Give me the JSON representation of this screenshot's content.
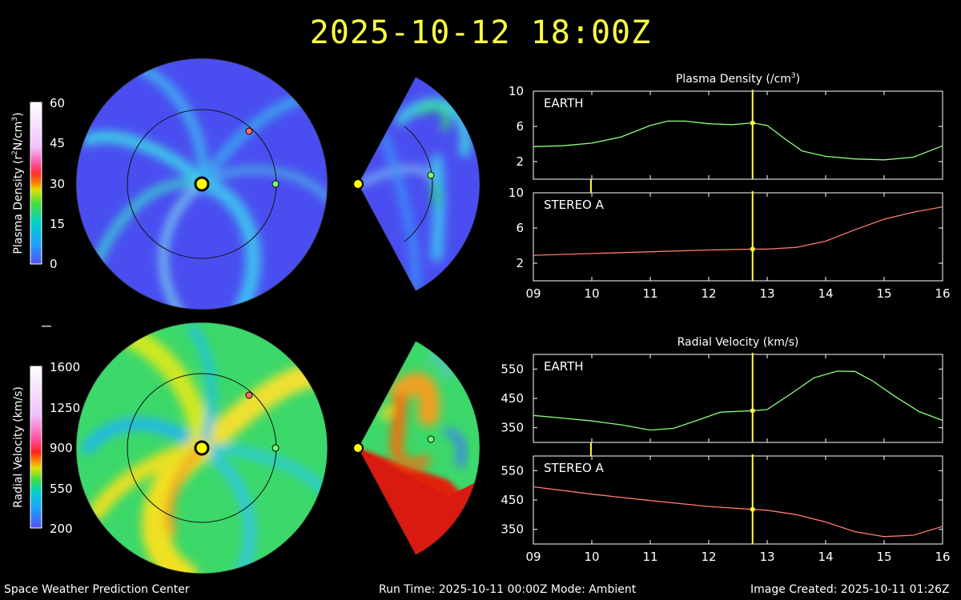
{
  "title": "2025-10-12 18:00Z",
  "colors": {
    "title": "#ffff44",
    "earth": "#8cff7c",
    "stereo_a": "#ff7b6f",
    "now_line": "#ffff44"
  },
  "density_colorbar": {
    "label_parts": [
      "Plasma Density (r",
      "2",
      "N/cm",
      "3",
      ")"
    ],
    "ticks": [
      "0",
      "15",
      "30",
      "45",
      "60"
    ]
  },
  "velocity_colorbar": {
    "label": "Radial Velocity (km/s)",
    "ticks": [
      "200",
      "550",
      "900",
      "1250",
      "1600"
    ]
  },
  "footer": {
    "left": "Space Weather Prediction Center",
    "mid": "Run Time: 2025-10-11 00:00Z  Mode: Ambient",
    "right": "Image Created: 2025-10-11 01:26Z"
  },
  "chart_data": [
    {
      "type": "line",
      "title_parts": [
        "Plasma Density (/cm",
        "3",
        ")"
      ],
      "panel": "EARTH",
      "x": [
        9,
        9.5,
        10,
        10.5,
        11,
        11.3,
        11.6,
        12,
        12.4,
        12.75,
        13,
        13.3,
        13.6,
        14,
        14.5,
        15,
        15.5,
        16
      ],
      "y": [
        3.7,
        3.8,
        4.1,
        4.8,
        6.1,
        6.6,
        6.6,
        6.3,
        6.2,
        6.4,
        6.1,
        4.6,
        3.2,
        2.6,
        2.3,
        2.2,
        2.5,
        3.8
      ],
      "xlim": [
        9,
        16
      ],
      "ylim": [
        0,
        10
      ],
      "yticks": [
        2,
        6,
        10
      ],
      "xticks": [
        "09",
        "10",
        "11",
        "12",
        "13",
        "14",
        "15",
        "16"
      ],
      "marker_x": 12.75
    },
    {
      "type": "line",
      "panel": "STEREO A",
      "x": [
        9,
        10,
        11,
        12,
        12.75,
        13,
        13.5,
        14,
        14.5,
        15,
        15.5,
        16
      ],
      "y": [
        2.9,
        3.1,
        3.3,
        3.5,
        3.6,
        3.6,
        3.8,
        4.5,
        5.8,
        7.0,
        7.8,
        8.4
      ],
      "xlim": [
        9,
        16
      ],
      "ylim": [
        0,
        10
      ],
      "yticks": [
        2,
        6,
        10
      ],
      "xticks": [
        "09",
        "10",
        "11",
        "12",
        "13",
        "14",
        "15",
        "16"
      ],
      "marker_x": 12.75
    },
    {
      "type": "line",
      "title": "Radial Velocity (km/s)",
      "panel": "EARTH",
      "x": [
        9,
        9.5,
        10,
        10.5,
        11,
        11.4,
        11.8,
        12.2,
        12.75,
        13,
        13.4,
        13.8,
        14.2,
        14.5,
        14.8,
        15.2,
        15.6,
        16
      ],
      "y": [
        392,
        383,
        373,
        360,
        342,
        348,
        375,
        403,
        408,
        412,
        465,
        520,
        543,
        542,
        510,
        455,
        405,
        375
      ],
      "xlim": [
        9,
        16
      ],
      "ylim": [
        300,
        600
      ],
      "yticks": [
        350,
        450,
        550
      ],
      "xticks": [
        "09",
        "10",
        "11",
        "12",
        "13",
        "14",
        "15",
        "16"
      ],
      "marker_x": 12.75
    },
    {
      "type": "line",
      "panel": "STEREO A",
      "x": [
        9,
        10,
        11,
        12,
        12.75,
        13,
        13.5,
        14,
        14.5,
        15,
        15.5,
        16
      ],
      "y": [
        495,
        470,
        448,
        428,
        418,
        415,
        400,
        375,
        342,
        325,
        330,
        360
      ],
      "xlim": [
        9,
        16
      ],
      "ylim": [
        300,
        600
      ],
      "yticks": [
        350,
        450,
        550
      ],
      "xticks": [
        "09",
        "10",
        "11",
        "12",
        "13",
        "14",
        "15",
        "16"
      ],
      "marker_x": 12.75
    }
  ]
}
